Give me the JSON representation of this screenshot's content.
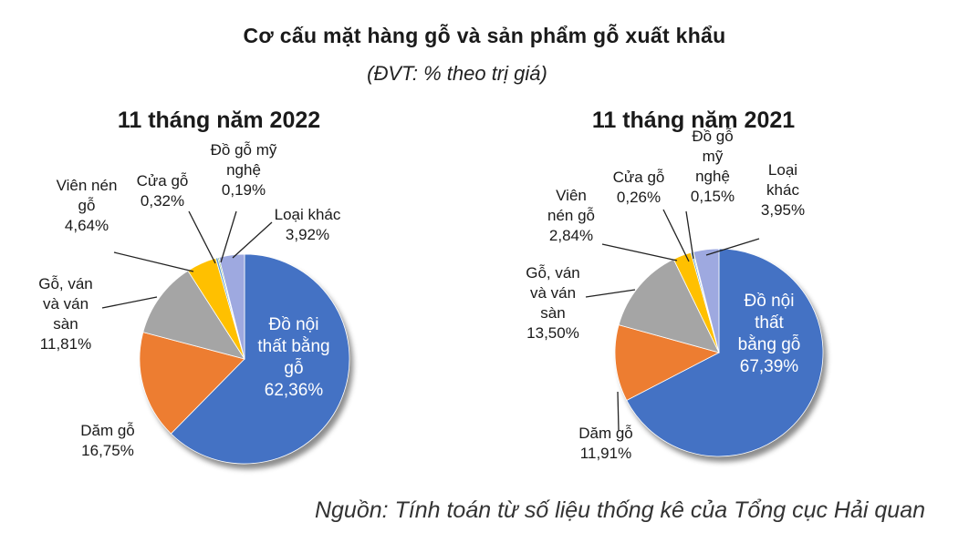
{
  "title": "Cơ cấu mặt hàng gỗ và sản phẩm gỗ xuất khẩu",
  "subtitle": "(ĐVT: % theo trị giá)",
  "source": "Nguồn: Tính toán từ số liệu thống kê của Tổng cục Hải quan",
  "colors": {
    "do_noi_that": "#4472C4",
    "dam_go": "#ED7D31",
    "go_van": "#A5A5A5",
    "vien_nen": "#FFC000",
    "cua_go": "#5B9BD5",
    "do_go_my_nghe": "#70AD47",
    "loai_khac": "#9EA9E0"
  },
  "chart_data": [
    {
      "type": "pie",
      "title": "11 tháng năm 2022",
      "slices": [
        {
          "key": "do_noi_that",
          "value": 62.36,
          "label_lines": [
            "Đồ nội",
            "thất bằng",
            "gỗ",
            "62,36%"
          ]
        },
        {
          "key": "dam_go",
          "value": 16.75,
          "label_lines": [
            "Dăm gỗ",
            "16,75%"
          ]
        },
        {
          "key": "go_van",
          "value": 11.81,
          "label_lines": [
            "Gỗ, ván",
            "và ván",
            "sàn",
            "11,81%"
          ]
        },
        {
          "key": "vien_nen",
          "value": 4.64,
          "label_lines": [
            "Viên nén",
            "gỗ",
            "4,64%"
          ]
        },
        {
          "key": "cua_go",
          "value": 0.32,
          "label_lines": [
            "Cửa gỗ",
            "0,32%"
          ]
        },
        {
          "key": "do_go_my_nghe",
          "value": 0.19,
          "label_lines": [
            "Đồ gỗ mỹ",
            "nghệ",
            "0,19%"
          ]
        },
        {
          "key": "loai_khac",
          "value": 3.92,
          "label_lines": [
            "Loại khác",
            "3,92%"
          ]
        }
      ]
    },
    {
      "type": "pie",
      "title": "11 tháng năm 2021",
      "slices": [
        {
          "key": "do_noi_that",
          "value": 67.39,
          "label_lines": [
            "Đồ nội",
            "thất",
            "bằng gỗ",
            "67,39%"
          ]
        },
        {
          "key": "dam_go",
          "value": 11.91,
          "label_lines": [
            "Dăm gỗ",
            "11,91%"
          ]
        },
        {
          "key": "go_van",
          "value": 13.5,
          "label_lines": [
            "Gỗ, ván",
            "và ván",
            "sàn",
            "13,50%"
          ]
        },
        {
          "key": "vien_nen",
          "value": 2.84,
          "label_lines": [
            "Viên",
            "nén gỗ",
            "2,84%"
          ]
        },
        {
          "key": "cua_go",
          "value": 0.26,
          "label_lines": [
            "Cửa gỗ",
            "0,26%"
          ]
        },
        {
          "key": "do_go_my_nghe",
          "value": 0.15,
          "label_lines": [
            "Đồ gỗ",
            "mỹ",
            "nghệ",
            "0,15%"
          ]
        },
        {
          "key": "loai_khac",
          "value": 3.95,
          "label_lines": [
            "Loại",
            "khác",
            "3,95%"
          ]
        }
      ]
    }
  ]
}
